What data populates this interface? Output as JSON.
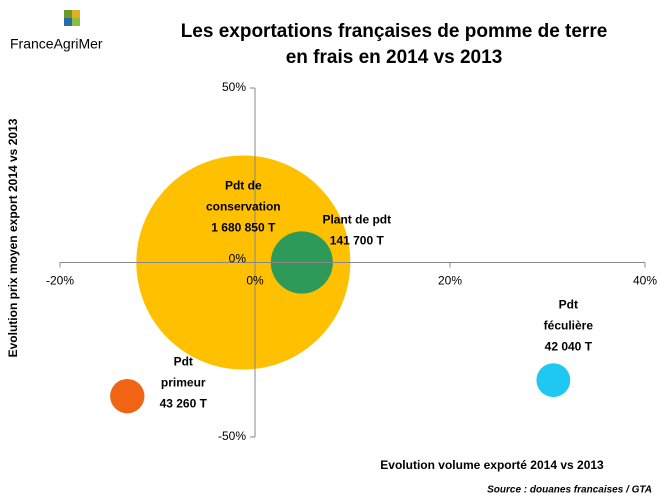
{
  "chart_data": {
    "type": "bubble",
    "title": [
      "Les exportations françaises de pomme de terre",
      "en frais en 2014 vs 2013"
    ],
    "logo": "FranceAgriMer",
    "x_label": "Evolution volume exporté 2014 vs 2013",
    "y_label": "Evolution prix moyen export 2014 vs 2013",
    "source": "Source : douanes francaises / GTA",
    "xlim": [
      -20,
      40
    ],
    "xticks": [
      {
        "value": -20,
        "label": "-20%"
      },
      {
        "value": 0,
        "label": "0%"
      },
      {
        "value": 20,
        "label": "20%"
      },
      {
        "value": 40,
        "label": "40%"
      }
    ],
    "ylim": [
      -50,
      50
    ],
    "yticks": [
      {
        "value": -50,
        "label": "-50%"
      },
      {
        "value": 0,
        "label": "0%"
      },
      {
        "value": 50,
        "label": "50%"
      }
    ],
    "series": [
      {
        "name": [
          "Pdt de",
          "conservation"
        ],
        "color": "#ffc000",
        "x": -1.2,
        "y": 0,
        "size": 1680850,
        "size_label": "1 680 850 T"
      },
      {
        "name": [
          "Plant de pdt"
        ],
        "color": "#2e9a5a",
        "x": 4.8,
        "y": 0,
        "size": 141700,
        "size_label": "141 700 T"
      },
      {
        "name": [
          "Pdt",
          "féculière"
        ],
        "color": "#1ec8f0",
        "x": 30.6,
        "y": -33.7,
        "size": 42040,
        "size_label": "42 040 T"
      },
      {
        "name": [
          "Pdt",
          "primeur"
        ],
        "color": "#f06414",
        "x": -13.1,
        "y": -38.3,
        "size": 43260,
        "size_label": "43 260 T"
      }
    ]
  }
}
